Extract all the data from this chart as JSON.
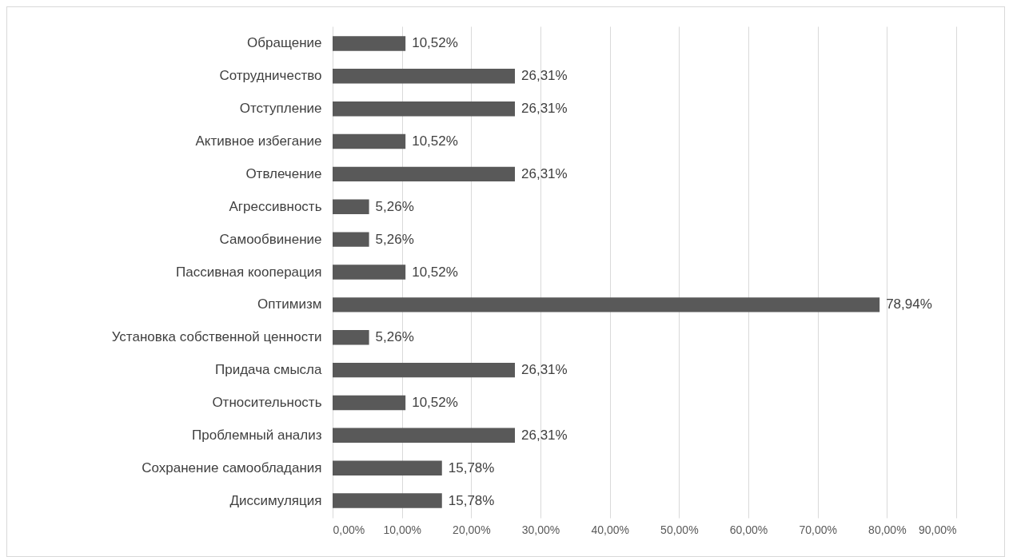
{
  "chart_data": {
    "type": "bar",
    "orientation": "horizontal",
    "categories": [
      "Обращение",
      "Сотрудничество",
      "Отступление",
      "Активное избегание",
      "Отвлечение",
      "Агрессивность",
      "Самообвинение",
      "Пассивная кооперация",
      "Оптимизм",
      "Установка собственной ценности",
      "Придача смысла",
      "Относительность",
      "Проблемный анализ",
      "Сохранение самообладания",
      "Диссимуляция"
    ],
    "values": [
      10.52,
      26.31,
      26.31,
      10.52,
      26.31,
      5.26,
      5.26,
      10.52,
      78.94,
      5.26,
      26.31,
      10.52,
      26.31,
      15.78,
      15.78
    ],
    "value_labels": [
      "10,52%",
      "26,31%",
      "26,31%",
      "10,52%",
      "26,31%",
      "5,26%",
      "5,26%",
      "10,52%",
      "78,94%",
      "5,26%",
      "26,31%",
      "10,52%",
      "26,31%",
      "15,78%",
      "15,78%"
    ],
    "color": "#595959",
    "xlim": [
      0,
      90
    ],
    "xticks": [
      {
        "value": 0,
        "label": "0,00%"
      },
      {
        "value": 10,
        "label": "10,00%"
      },
      {
        "value": 20,
        "label": "20,00%"
      },
      {
        "value": 30,
        "label": "30,00%"
      },
      {
        "value": 40,
        "label": "40,00%"
      },
      {
        "value": 50,
        "label": "50,00%"
      },
      {
        "value": 60,
        "label": "60,00%"
      },
      {
        "value": 70,
        "label": "70,00%"
      },
      {
        "value": 80,
        "label": "80,00%"
      },
      {
        "value": 90,
        "label": "90,00%"
      }
    ],
    "grid": "x"
  }
}
